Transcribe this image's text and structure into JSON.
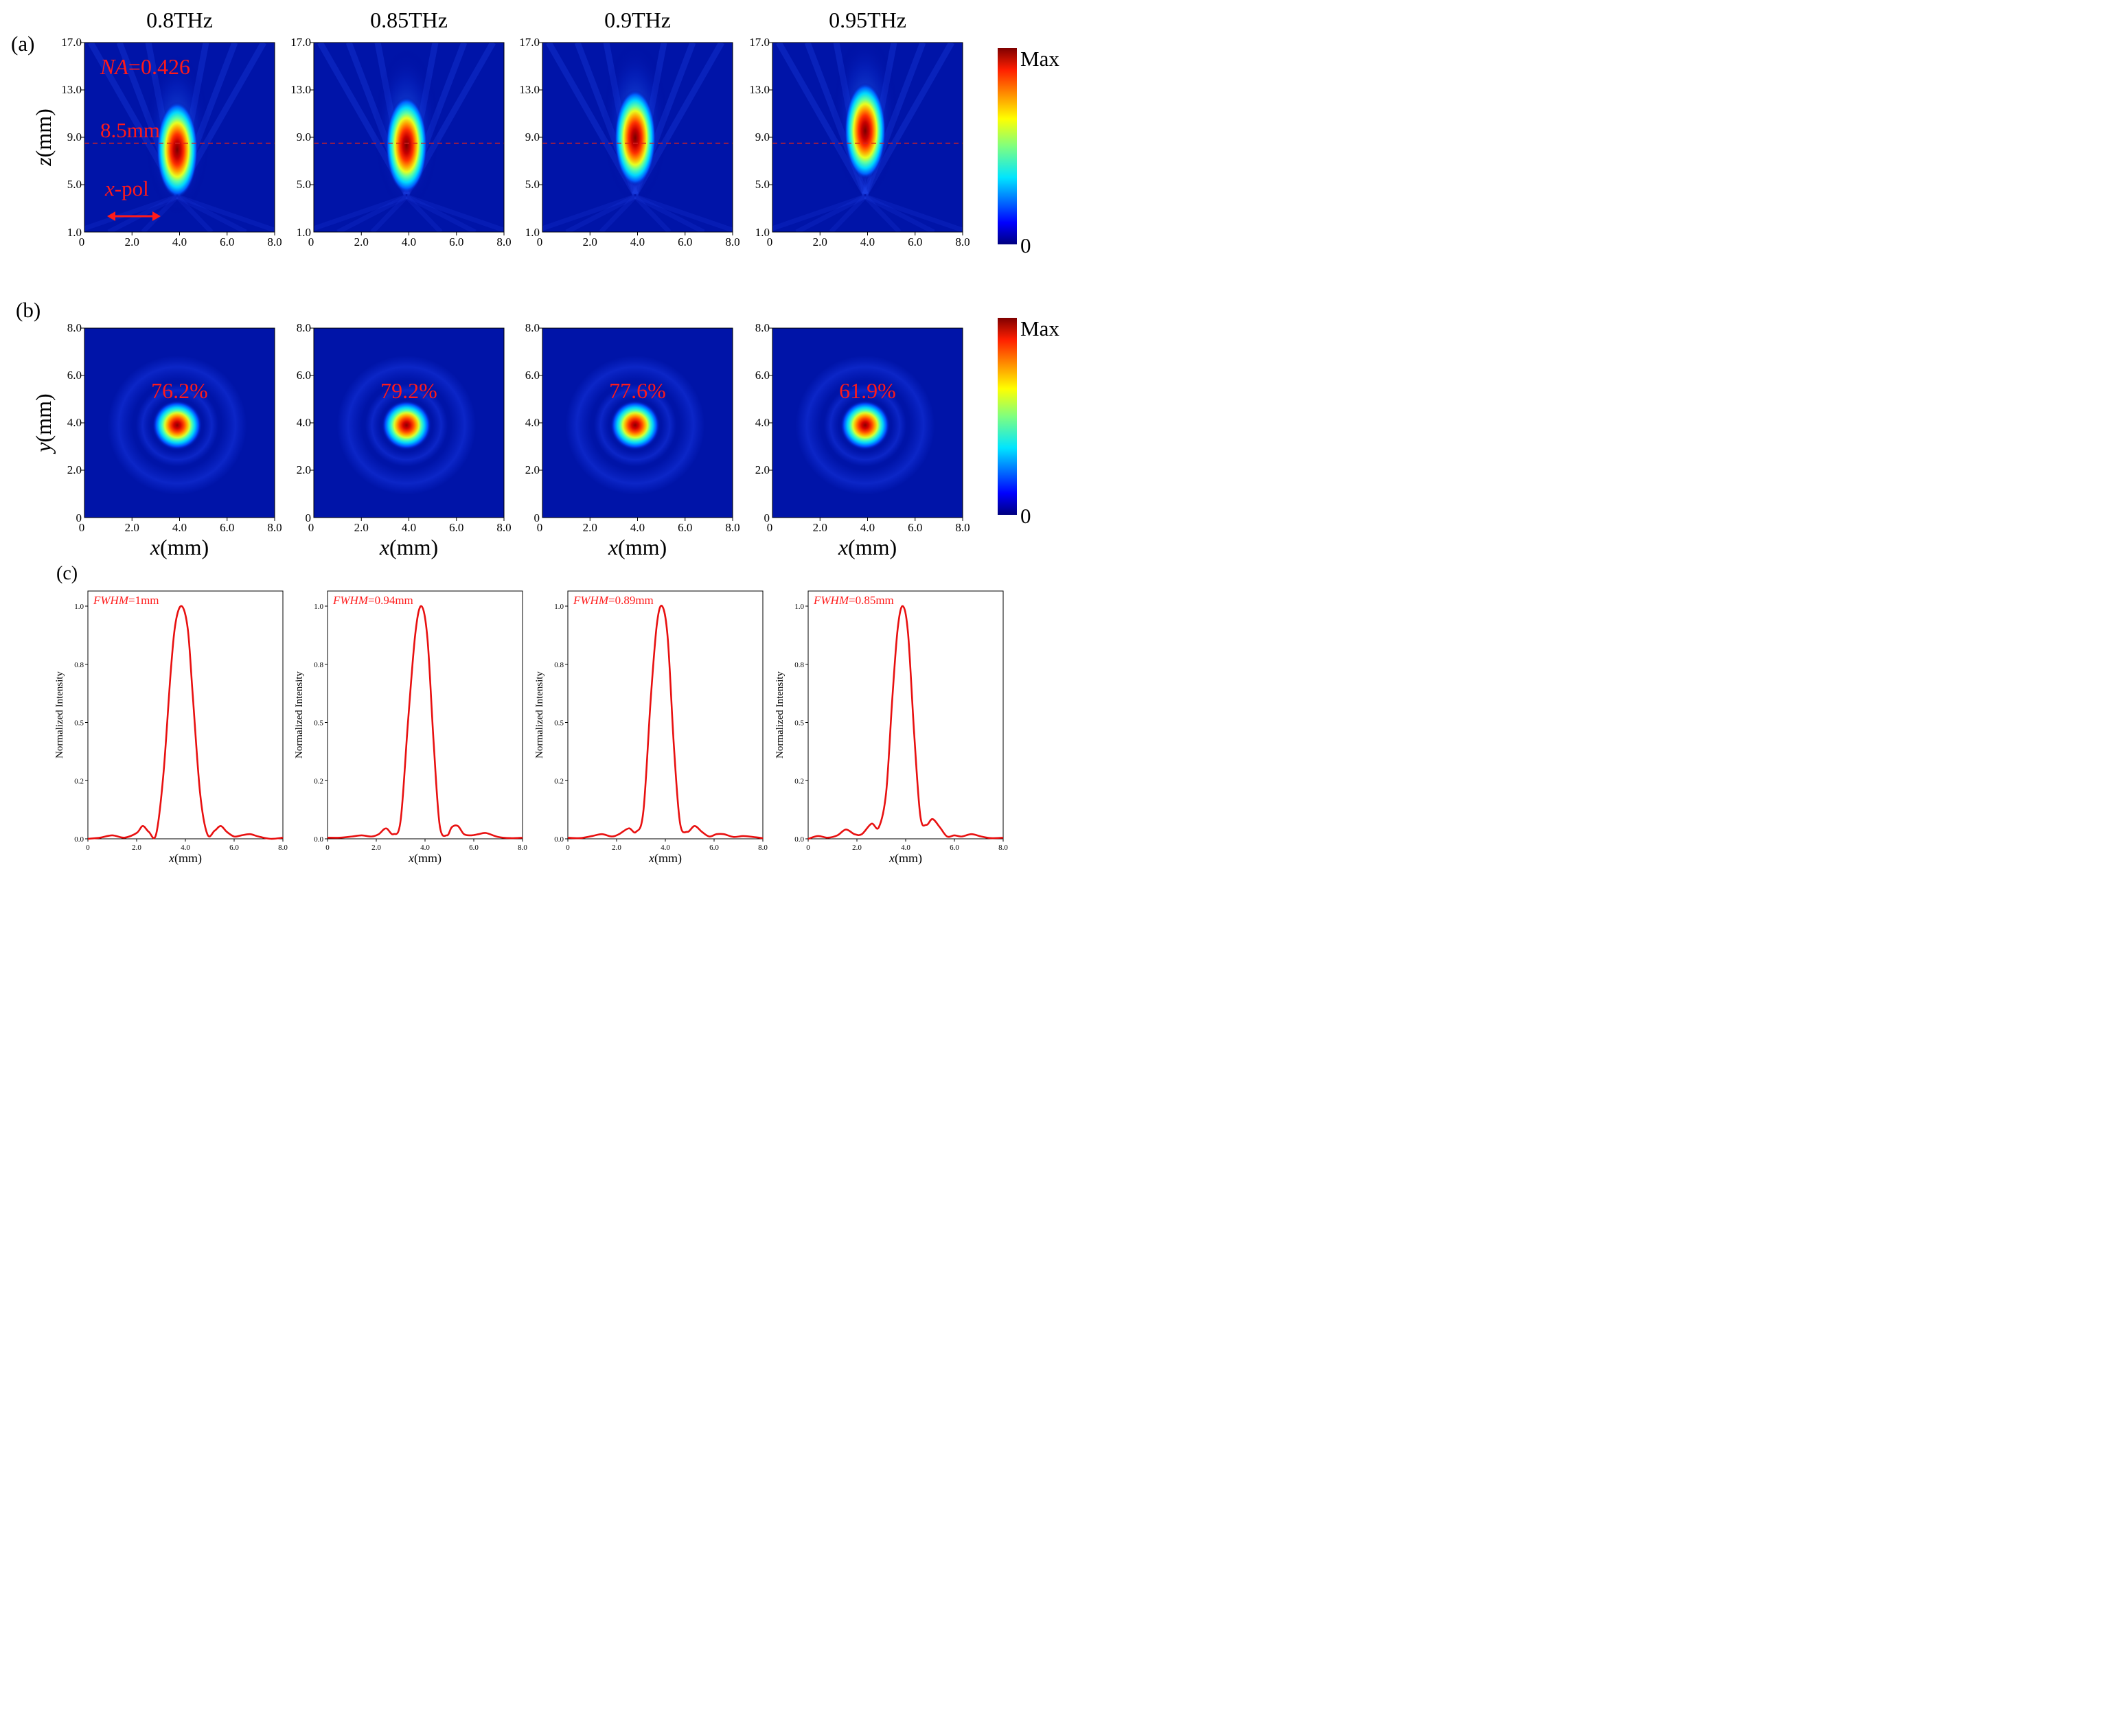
{
  "panel_labels": [
    "(a)",
    "(b)",
    "(c)"
  ],
  "freq_titles": [
    "0.8THz",
    "0.85THz",
    "0.9THz",
    "0.95THz"
  ],
  "colorbar": {
    "max_label": "Max",
    "min_label": "0"
  },
  "colors": {
    "annotation": "#ff1a1a",
    "dashed_line": "#d62020",
    "curve": "#e81010"
  },
  "chart_data": [
    {
      "type": "heatmap",
      "id": "a",
      "xlabel_it": "",
      "xlabel": "",
      "ylabel_it": "z",
      "ylabel": "(mm)",
      "xlim": [
        0,
        8
      ],
      "ylim": [
        1,
        17
      ],
      "xticks": [
        "2.0",
        "4.0",
        "6.0",
        "8.0"
      ],
      "xtick_zero": "0",
      "yticks": [
        "5.0",
        "9.0",
        "13.0",
        "17.0"
      ],
      "ytick_first": "1.0",
      "dashed_focus_z": 8.5,
      "annotations": {
        "na_it": "NA",
        "na_val": "=0.426",
        "focus": "8.5mm",
        "pol_it": "x",
        "pol": "-pol"
      },
      "frequencies": [
        "0.8THz",
        "0.85THz",
        "0.9THz",
        "0.95THz"
      ],
      "focus_center_z": [
        7.6,
        8.0,
        8.6,
        9.2
      ],
      "colormap": "jet"
    },
    {
      "type": "heatmap",
      "id": "b",
      "xlabel_it": "x",
      "xlabel": "(mm)",
      "ylabel_it": "y",
      "ylabel": "(mm)",
      "xlim": [
        0,
        8
      ],
      "ylim": [
        0,
        8
      ],
      "xticks": [
        "2.0",
        "4.0",
        "6.0",
        "8.0"
      ],
      "xtick_zero": "0",
      "yticks": [
        "2.0",
        "4.0",
        "6.0",
        "8.0"
      ],
      "ytick_zero": "0",
      "efficiencies": [
        "76.2%",
        "79.2%",
        "77.6%",
        "61.9%"
      ],
      "spot_center": [
        3.9,
        3.9
      ],
      "colormap": "jet"
    },
    {
      "type": "line",
      "id": "c",
      "xlabel_it": "x",
      "xlabel": "(mm)",
      "ylabel": "Normalized Intensity",
      "xlim": [
        0,
        8
      ],
      "ylim": [
        0,
        1.05
      ],
      "xticks": [
        "0",
        "2.0",
        "4.0",
        "6.0",
        "8.0"
      ],
      "yticks": [
        {
          "v": 0,
          "t": "0.0"
        },
        {
          "v": 0.25,
          "t": "0.2"
        },
        {
          "v": 0.5,
          "t": "0.5"
        },
        {
          "v": 0.75,
          "t": "0.8"
        },
        {
          "v": 1.0,
          "t": "1.0"
        }
      ],
      "fwhm_label_it": "FWHM",
      "series": [
        {
          "fwhm_text": "=1mm",
          "x": [
            0,
            0.5,
            1.0,
            1.5,
            2.0,
            2.25,
            2.5,
            2.8,
            3.1,
            3.4,
            3.6,
            3.85,
            4.1,
            4.3,
            4.6,
            4.9,
            5.2,
            5.45,
            5.7,
            6.0,
            6.3,
            6.65,
            7.0,
            7.5,
            8.0
          ],
          "y": [
            0.0,
            0.005,
            0.015,
            0.005,
            0.025,
            0.055,
            0.03,
            0.02,
            0.28,
            0.72,
            0.93,
            1.0,
            0.9,
            0.62,
            0.2,
            0.02,
            0.035,
            0.055,
            0.03,
            0.01,
            0.015,
            0.02,
            0.01,
            0.0,
            0.005
          ]
        },
        {
          "fwhm_text": "=0.94mm",
          "x": [
            0,
            0.5,
            1.0,
            1.4,
            1.8,
            2.1,
            2.4,
            2.7,
            3.0,
            3.3,
            3.6,
            3.85,
            4.1,
            4.35,
            4.6,
            4.9,
            5.1,
            5.35,
            5.6,
            5.9,
            6.2,
            6.5,
            7.0,
            7.5,
            8.0
          ],
          "y": [
            0.005,
            0.005,
            0.01,
            0.015,
            0.01,
            0.02,
            0.045,
            0.02,
            0.08,
            0.5,
            0.88,
            1.0,
            0.86,
            0.42,
            0.06,
            0.015,
            0.05,
            0.055,
            0.02,
            0.015,
            0.02,
            0.025,
            0.008,
            0.003,
            0.005
          ]
        },
        {
          "fwhm_text": "=0.89mm",
          "x": [
            0,
            0.5,
            1.0,
            1.4,
            1.8,
            2.1,
            2.5,
            2.8,
            3.1,
            3.4,
            3.65,
            3.87,
            4.1,
            4.35,
            4.6,
            4.9,
            5.2,
            5.5,
            5.8,
            6.1,
            6.4,
            6.8,
            7.2,
            7.6,
            8.0
          ],
          "y": [
            0.005,
            0.003,
            0.012,
            0.02,
            0.01,
            0.02,
            0.045,
            0.03,
            0.12,
            0.6,
            0.92,
            1.0,
            0.86,
            0.4,
            0.07,
            0.03,
            0.055,
            0.03,
            0.01,
            0.02,
            0.02,
            0.008,
            0.012,
            0.008,
            0.003
          ]
        },
        {
          "fwhm_text": "=0.85mm",
          "x": [
            0,
            0.4,
            0.8,
            1.2,
            1.55,
            1.9,
            2.2,
            2.6,
            2.9,
            3.2,
            3.45,
            3.67,
            3.88,
            4.1,
            4.35,
            4.6,
            4.85,
            5.1,
            5.4,
            5.7,
            6.0,
            6.3,
            6.7,
            7.1,
            7.5,
            8.0
          ],
          "y": [
            0.0,
            0.012,
            0.005,
            0.015,
            0.04,
            0.02,
            0.02,
            0.065,
            0.05,
            0.2,
            0.6,
            0.9,
            1.0,
            0.88,
            0.45,
            0.1,
            0.06,
            0.085,
            0.05,
            0.01,
            0.015,
            0.01,
            0.02,
            0.01,
            0.003,
            0.005
          ]
        }
      ]
    }
  ]
}
